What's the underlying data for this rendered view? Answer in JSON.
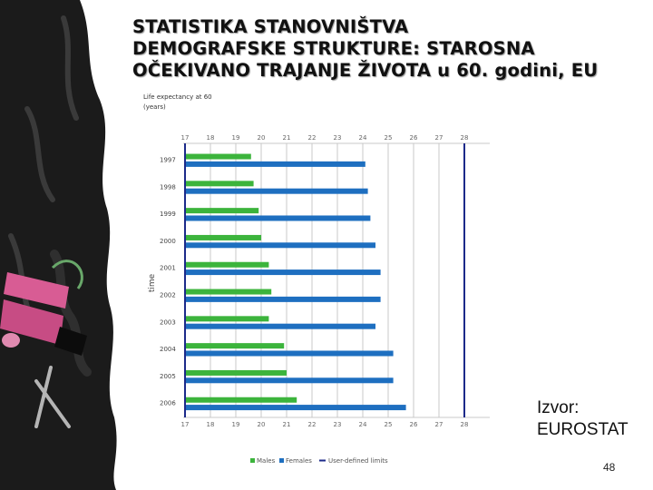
{
  "slide": {
    "title_lines": [
      "STATISTIKA STANOVNIŠTVA",
      "DEMOGRAFSKE STRUKTURE: STAROSNA",
      "OČEKIVANO TRAJANJE ŽIVOTA u 60. godini, EU"
    ],
    "source_lines": [
      "Izvor:",
      "EUROSTAT"
    ],
    "page_number": "48"
  },
  "colors": {
    "males": "#3cb43c",
    "females": "#1e6fc0",
    "limit_line": "#1c2a8a",
    "grid": "#c8c8c8",
    "chalkboard": "#1b1b1b",
    "chalk_pink": "#d85c94",
    "chalk_green": "#69a86a"
  },
  "chart_data": {
    "type": "bar",
    "orientation": "horizontal",
    "title": "Life expectancy at 60 (years)",
    "ylabel": "time",
    "xlim": [
      17,
      29
    ],
    "x_ticks": [
      "17",
      "18",
      "19",
      "20",
      "21",
      "22",
      "23",
      "24",
      "25",
      "26",
      "27",
      "28"
    ],
    "categories": [
      "1997",
      "1998",
      "1999",
      "2000",
      "2001",
      "2002",
      "2003",
      "2004",
      "2005",
      "2006"
    ],
    "series": [
      {
        "name": "Males",
        "values": [
          19.6,
          19.7,
          19.9,
          20.0,
          20.3,
          20.4,
          20.3,
          20.9,
          21.0,
          21.4
        ]
      },
      {
        "name": "Females",
        "values": [
          24.1,
          24.2,
          24.3,
          24.5,
          24.7,
          24.7,
          24.5,
          25.2,
          25.2,
          25.7
        ]
      }
    ],
    "reference_lines": [
      17,
      28
    ],
    "legend": [
      "Males",
      "Females",
      "User-defined limits"
    ],
    "legend_position": "bottom",
    "grid": true
  }
}
